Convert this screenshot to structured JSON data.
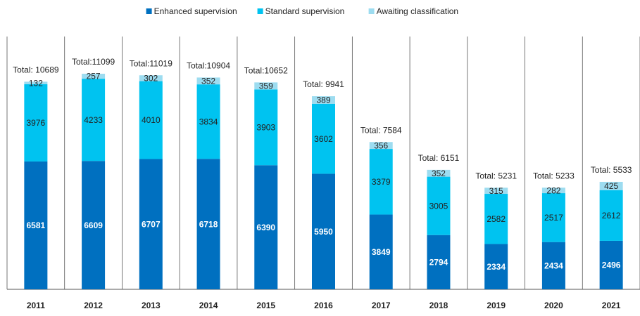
{
  "chart_data": {
    "type": "stacked-bar",
    "categories": [
      "2011",
      "2012",
      "2013",
      "2014",
      "2015",
      "2016",
      "2017",
      "2018",
      "2019",
      "2020",
      "2021"
    ],
    "series": [
      {
        "name": "Enhanced supervision",
        "color": "#0070c0",
        "values": [
          6581,
          6609,
          6707,
          6718,
          6390,
          5950,
          3849,
          2794,
          2334,
          2434,
          2496
        ]
      },
      {
        "name": "Standard supervision",
        "color": "#00c3f0",
        "values": [
          3976,
          4233,
          4010,
          3834,
          3903,
          3602,
          3379,
          3005,
          2582,
          2517,
          2612
        ]
      },
      {
        "name": "Awaiting classification",
        "color": "#9ddcf0",
        "values": [
          132,
          257,
          302,
          352,
          359,
          389,
          356,
          352,
          315,
          282,
          425
        ]
      }
    ],
    "total_labels": [
      "Total: 10689",
      "Total:11099",
      "Total:11019",
      "Total:10904",
      "Total:10652",
      "Total: 9941",
      "Total: 7584",
      "Total: 6151",
      "Total: 5231",
      "Total: 5233",
      "Total: 5533"
    ],
    "legend": "top"
  }
}
